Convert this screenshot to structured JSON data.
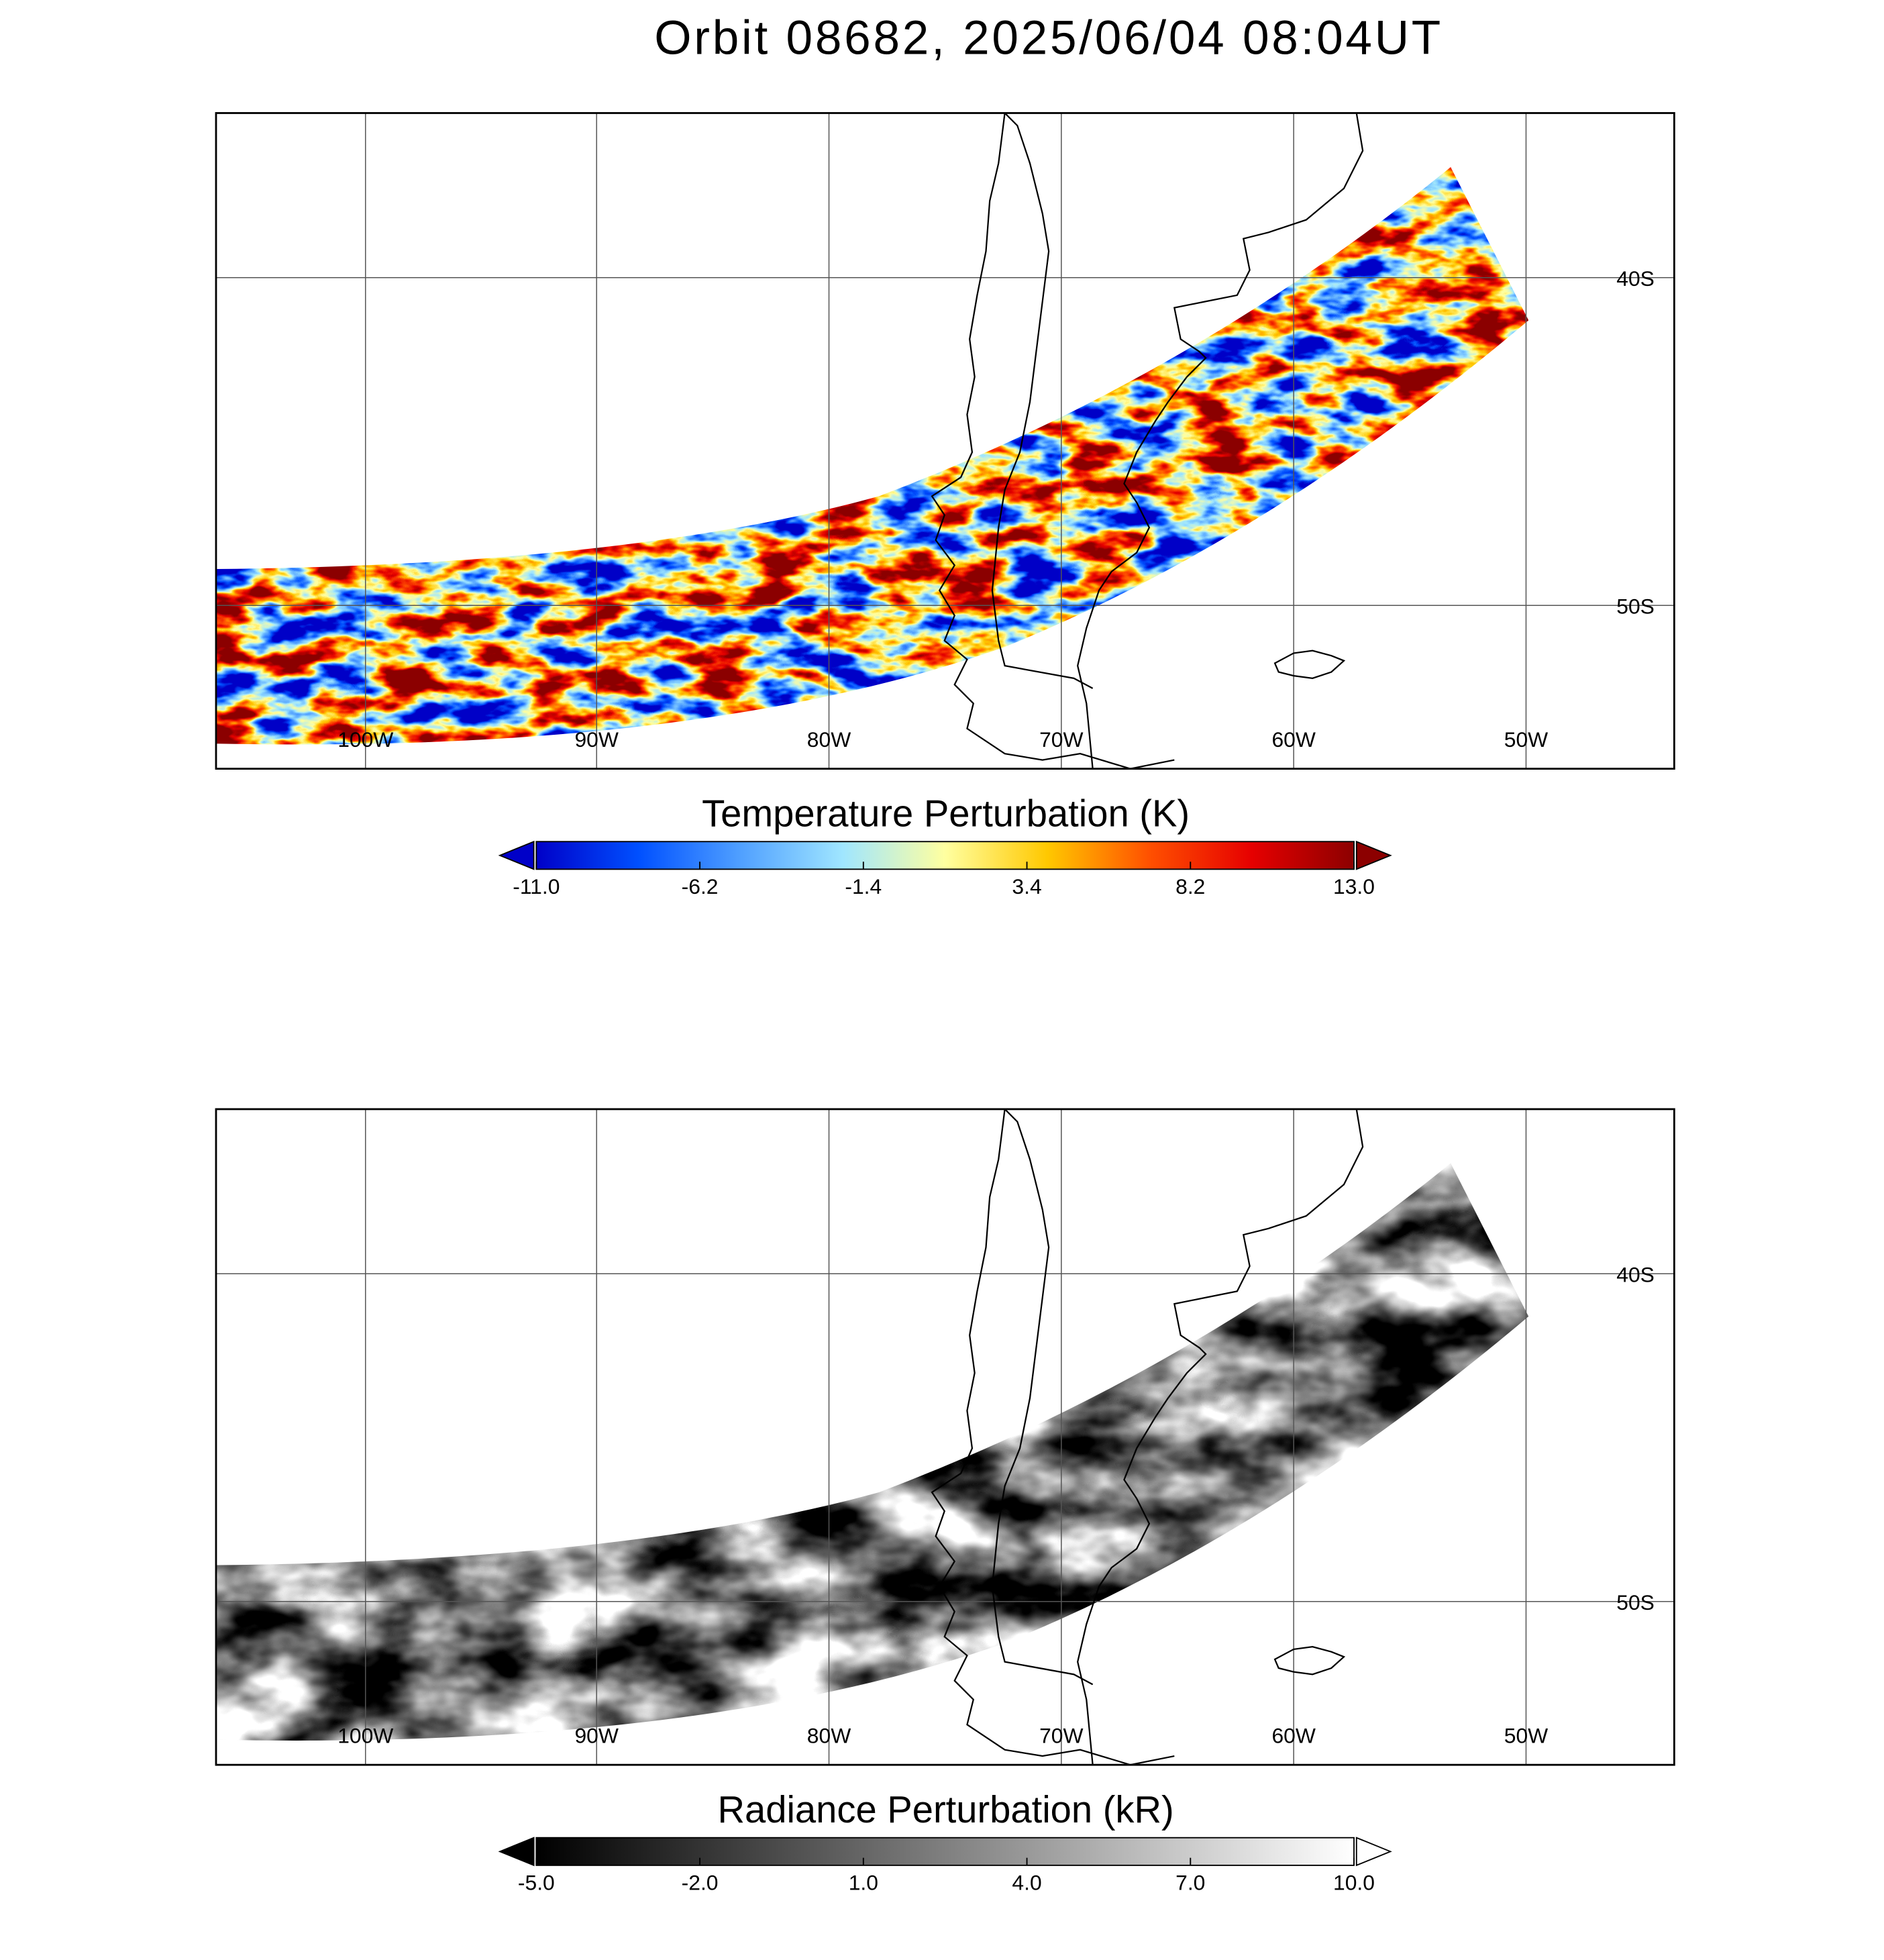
{
  "title": "Orbit 08682, 2025/06/04 08:04UT",
  "panels": [
    {
      "lon_labels": [
        "100W",
        "90W",
        "80W",
        "70W",
        "60W",
        "50W"
      ],
      "lat_labels": [
        "40S",
        "50S"
      ],
      "colorbar": {
        "title": "Temperature Perturbation (K)",
        "lim": [
          -11,
          13
        ],
        "ticks": [
          {
            "value": -11,
            "label": "-11.0"
          },
          {
            "value": -6.2,
            "label": "-6.2"
          },
          {
            "value": -1.4,
            "label": "-1.4"
          },
          {
            "value": 3.4,
            "label": "3.4"
          },
          {
            "value": 8.2,
            "label": "8.2"
          },
          {
            "value": 13,
            "label": "13.0"
          }
        ],
        "colors": [
          "#0000c8",
          "#0050ff",
          "#50a0ff",
          "#a0e6ff",
          "#ffffa0",
          "#ffc800",
          "#ff5000",
          "#e60000",
          "#8c0000"
        ]
      }
    },
    {
      "lon_labels": [
        "100W",
        "90W",
        "80W",
        "70W",
        "60W",
        "50W"
      ],
      "lat_labels": [
        "40S",
        "50S"
      ],
      "colorbar": {
        "title": "Radiance Perturbation (kR)",
        "lim": [
          -5,
          10
        ],
        "ticks": [
          {
            "value": -5,
            "label": "-5.0"
          },
          {
            "value": -2,
            "label": "-2.0"
          },
          {
            "value": 1,
            "label": "1.0"
          },
          {
            "value": 4,
            "label": "4.0"
          },
          {
            "value": 7,
            "label": "7.0"
          },
          {
            "value": 10,
            "label": "10.0"
          }
        ],
        "colors": [
          "#000000",
          "#ffffff"
        ]
      }
    }
  ]
}
